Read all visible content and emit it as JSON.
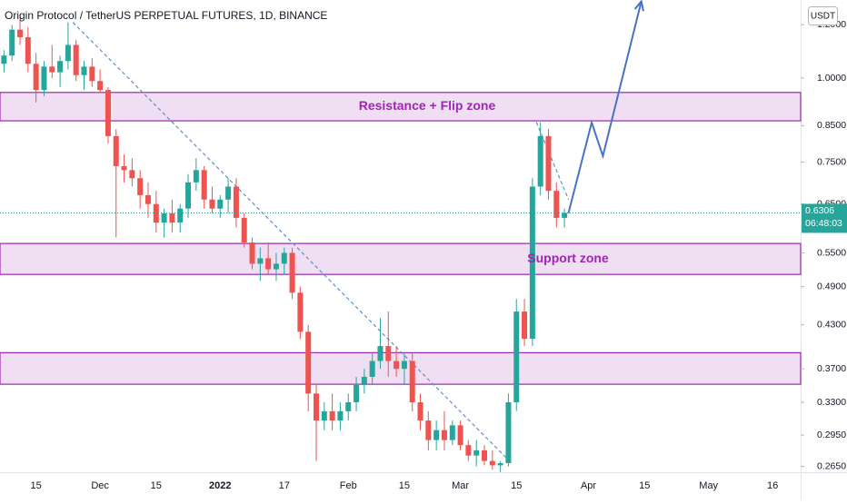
{
  "chart_data": {
    "type": "candlestick",
    "title": "Origin Protocol / TetherUS PERPETUAL FUTURES, 1D, BINANCE",
    "currency": "USDT",
    "log_scale": true,
    "up_color": "#26a69a",
    "down_color": "#ef5350",
    "categories": [
      null,
      null,
      null,
      null,
      "15",
      null,
      null,
      null,
      null,
      null,
      null,
      null,
      "Dec",
      null,
      null,
      null,
      null,
      null,
      null,
      "15",
      null,
      null,
      null,
      null,
      null,
      null,
      null,
      "2022",
      null,
      null,
      null,
      null,
      null,
      null,
      null,
      "17",
      null,
      null,
      null,
      null,
      null,
      null,
      null,
      "Feb",
      null,
      null,
      null,
      null,
      null,
      null,
      "15",
      null,
      null,
      null,
      null,
      null,
      null,
      "Mar",
      null,
      null,
      null,
      null,
      null,
      null,
      "15",
      null,
      null,
      null,
      null,
      null,
      null,
      null,
      null,
      "Apr",
      null,
      null,
      null,
      null,
      null,
      null,
      "15",
      null,
      null,
      null,
      null,
      null,
      null,
      null,
      "May",
      null,
      null,
      null,
      null,
      null,
      null,
      null,
      "16",
      null,
      null,
      null
    ],
    "open": [
      1.05,
      1.08,
      1.18,
      1.15,
      1.05,
      0.96,
      1.04,
      1.02,
      1.06,
      1.12,
      1.01,
      1.04,
      0.99,
      0.96,
      0.82,
      0.74,
      0.73,
      0.71,
      0.67,
      0.65,
      0.61,
      0.63,
      0.61,
      0.64,
      0.7,
      0.73,
      0.66,
      0.64,
      0.66,
      0.69,
      0.62,
      0.57,
      0.53,
      0.54,
      0.52,
      0.53,
      0.55,
      0.48,
      0.42,
      0.34,
      0.31,
      0.32,
      0.31,
      0.32,
      0.33,
      0.35,
      0.36,
      0.38,
      0.4,
      0.38,
      0.37,
      0.38,
      0.33,
      0.31,
      0.29,
      0.3,
      0.29,
      0.305,
      0.285,
      0.275,
      0.28,
      0.27,
      0.266,
      0.268,
      0.33,
      0.45,
      0.41,
      0.69,
      0.82,
      0.68,
      0.62,
      null,
      null,
      null,
      null,
      null,
      null,
      null,
      null,
      null,
      null,
      null,
      null,
      null,
      null,
      null,
      null,
      null,
      null,
      null,
      null,
      null,
      null,
      null,
      null,
      null,
      null,
      null,
      null,
      null
    ],
    "high": [
      1.1,
      1.2,
      1.24,
      1.19,
      1.09,
      1.06,
      1.12,
      1.08,
      1.21,
      1.14,
      1.06,
      1.07,
      1.03,
      0.97,
      0.84,
      0.77,
      0.76,
      0.73,
      0.7,
      0.68,
      0.64,
      0.66,
      0.65,
      0.72,
      0.76,
      0.74,
      0.69,
      0.67,
      0.71,
      0.71,
      0.63,
      0.58,
      0.56,
      0.57,
      0.55,
      0.56,
      0.56,
      0.49,
      0.43,
      0.35,
      0.33,
      0.34,
      0.33,
      0.34,
      0.36,
      0.37,
      0.39,
      0.44,
      0.45,
      0.4,
      0.39,
      0.39,
      0.34,
      0.32,
      0.31,
      0.32,
      0.31,
      0.31,
      0.29,
      0.29,
      0.285,
      0.28,
      0.27,
      0.34,
      0.47,
      0.47,
      0.71,
      0.86,
      0.84,
      0.7,
      0.64,
      null,
      null,
      null,
      null,
      null,
      null,
      null,
      null,
      null,
      null,
      null,
      null,
      null,
      null,
      null,
      null,
      null,
      null,
      null,
      null,
      null,
      null,
      null,
      null,
      null,
      null,
      null,
      null,
      null
    ],
    "low": [
      1.02,
      1.06,
      1.12,
      1.02,
      0.92,
      0.94,
      1.0,
      0.97,
      1.03,
      0.99,
      0.96,
      0.97,
      0.95,
      0.8,
      0.58,
      0.7,
      0.69,
      0.64,
      0.62,
      0.59,
      0.58,
      0.59,
      0.59,
      0.62,
      0.68,
      0.64,
      0.63,
      0.62,
      0.63,
      0.6,
      0.56,
      0.52,
      0.5,
      0.51,
      0.5,
      0.51,
      0.47,
      0.41,
      0.32,
      0.27,
      0.3,
      0.3,
      0.3,
      0.31,
      0.32,
      0.34,
      0.35,
      0.37,
      0.36,
      0.36,
      0.35,
      0.32,
      0.3,
      0.28,
      0.28,
      0.28,
      0.285,
      0.28,
      0.27,
      0.265,
      0.266,
      0.262,
      0.26,
      0.265,
      0.32,
      0.4,
      0.4,
      0.67,
      0.66,
      0.6,
      0.6,
      null,
      null,
      null,
      null,
      null,
      null,
      null,
      null,
      null,
      null,
      null,
      null,
      null,
      null,
      null,
      null,
      null,
      null,
      null,
      null,
      null,
      null,
      null,
      null,
      null,
      null,
      null,
      null,
      null
    ],
    "close": [
      1.08,
      1.18,
      1.15,
      1.05,
      0.96,
      1.04,
      1.02,
      1.06,
      1.12,
      1.01,
      1.04,
      0.99,
      0.96,
      0.82,
      0.74,
      0.73,
      0.71,
      0.67,
      0.65,
      0.61,
      0.63,
      0.61,
      0.64,
      0.7,
      0.73,
      0.66,
      0.64,
      0.66,
      0.69,
      0.62,
      0.57,
      0.53,
      0.54,
      0.52,
      0.53,
      0.55,
      0.48,
      0.42,
      0.34,
      0.31,
      0.32,
      0.31,
      0.32,
      0.33,
      0.35,
      0.36,
      0.38,
      0.4,
      0.38,
      0.37,
      0.38,
      0.33,
      0.31,
      0.29,
      0.3,
      0.29,
      0.305,
      0.285,
      0.275,
      0.28,
      0.27,
      0.266,
      0.268,
      0.33,
      0.45,
      0.41,
      0.69,
      0.82,
      0.68,
      0.62,
      0.6306,
      null,
      null,
      null,
      null,
      null,
      null,
      null,
      null,
      null,
      null,
      null,
      null,
      null,
      null,
      null,
      null,
      null,
      null,
      null,
      null,
      null,
      null,
      null,
      null,
      null,
      null,
      null,
      null,
      null
    ],
    "ylim": [
      0.2598,
      1.306
    ],
    "yticks": [
      {
        "value": 0.265,
        "label": "0.2650"
      },
      {
        "value": 0.295,
        "label": "0.2950"
      },
      {
        "value": 0.33,
        "label": "0.3300"
      },
      {
        "value": 0.37,
        "label": "0.3700"
      },
      {
        "value": 0.43,
        "label": "0.4300"
      },
      {
        "value": 0.49,
        "label": "0.4900"
      },
      {
        "value": 0.55,
        "label": "0.5500"
      },
      {
        "value": 0.65,
        "label": "0.6500"
      },
      {
        "value": 0.75,
        "label": "0.7500"
      },
      {
        "value": 0.85,
        "label": "0.8500"
      },
      {
        "value": 1.0,
        "label": "1.0000"
      },
      {
        "value": 1.2,
        "label": "1.2000"
      }
    ],
    "last_price": 0.6306,
    "countdown": "06:48:03",
    "zones": [
      {
        "label": "Resistance + Flip zone",
        "top": 0.952,
        "bottom": 0.864
      },
      {
        "label": "Support zone",
        "top": 0.568,
        "bottom": 0.511
      },
      {
        "top": 0.391,
        "bottom": 0.351
      }
    ],
    "trendlines": [
      {
        "x": [
          8.6,
          63
        ],
        "y": [
          1.21,
          0.271
        ]
      },
      {
        "x": [
          66.5,
          70.5
        ],
        "y": [
          0.86,
          0.66
        ]
      }
    ],
    "projection": {
      "x": [
        70.5,
        73.4,
        74.8,
        79.6
      ],
      "y": [
        0.63,
        0.859,
        0.766,
        1.3
      ]
    }
  }
}
